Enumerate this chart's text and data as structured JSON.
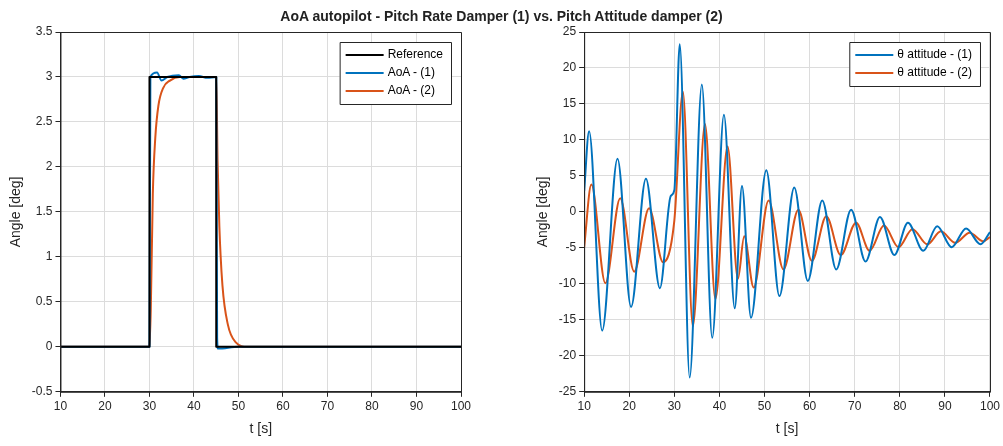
{
  "chart_data": [
    {
      "type": "line",
      "title": "AoA autopilot - Pitch Rate Damper (1) vs. Pitch Attitude damper (2)",
      "xlabel": "t [s]",
      "ylabel": "Angle [deg]",
      "xlim": [
        10,
        100
      ],
      "xticks": [
        10,
        20,
        30,
        40,
        50,
        60,
        70,
        80,
        90,
        100
      ],
      "ylim": [
        -0.5,
        3.5
      ],
      "yticks": [
        -0.5,
        0,
        0.5,
        1,
        1.5,
        2,
        2.5,
        3,
        3.5
      ],
      "grid": true,
      "legend": "top right",
      "series": [
        {
          "name": "Reference",
          "type": "step",
          "color": "#000000",
          "x": [
            10,
            30,
            45,
            100
          ],
          "values": [
            0,
            3,
            0,
            0
          ]
        },
        {
          "name": "AoA - (1)",
          "color": "#0072bd",
          "x": [
            10,
            30,
            30.2,
            31.7,
            32.7,
            34,
            36.6,
            37.6,
            39,
            41.1,
            43,
            45,
            45.2,
            45.4,
            50,
            100
          ],
          "values": [
            0,
            0,
            3,
            3.05,
            2.96,
            3,
            3.02,
            2.98,
            3,
            3.01,
            2.99,
            3,
            0.1,
            -0.02,
            0,
            0
          ]
        },
        {
          "name": "AoA - (2)",
          "color": "#d95319",
          "x": [
            10,
            30,
            30.3,
            30.75,
            31.3,
            32,
            33.1,
            34.6,
            36.8,
            45,
            45.3,
            45.7,
            46.4,
            47.6,
            49.4,
            52,
            100
          ],
          "values": [
            0,
            0,
            0.43,
            1.7,
            2.32,
            2.68,
            2.88,
            2.96,
            3,
            3,
            2.07,
            1.34,
            0.68,
            0.25,
            0.05,
            0,
            0
          ]
        }
      ]
    },
    {
      "type": "line",
      "xlabel": "t [s]",
      "ylabel": "Angle [deg]",
      "xlim": [
        10,
        100
      ],
      "xticks": [
        10,
        20,
        30,
        40,
        50,
        60,
        70,
        80,
        90,
        100
      ],
      "ylim": [
        -25,
        25
      ],
      "yticks": [
        -25,
        -20,
        -15,
        -10,
        -5,
        0,
        5,
        10,
        15,
        20,
        25
      ],
      "grid": true,
      "legend": "top right",
      "series": [
        {
          "name": "θ attitude - (1)",
          "color": "#0072bd",
          "x": [
            10,
            11.1,
            14,
            17.4,
            20.4,
            23.7,
            26.8,
            29.2,
            30,
            31.2,
            33.4,
            36.1,
            38.4,
            41,
            43.4,
            45,
            47,
            50.4,
            53.3,
            56.6,
            59.6,
            62.8,
            65.9,
            69.2,
            72.4,
            75.6,
            78.8,
            81.8,
            85.2,
            88.3,
            91.5,
            94.7,
            97.9,
            100
          ],
          "values": [
            2.9,
            11.2,
            -16.5,
            7.4,
            -13.2,
            4.6,
            -10.6,
            2.2,
            3,
            23.3,
            -23,
            17.7,
            -17.5,
            13.5,
            -13.4,
            3.6,
            -14.7,
            5.8,
            -11.7,
            3.4,
            -9.6,
            1.6,
            -8,
            0.3,
            -6.9,
            -0.7,
            -6,
            -1.5,
            -5.4,
            -2,
            -4.9,
            -2.3,
            -4.5,
            -2.8
          ]
        },
        {
          "name": "θ attitude - (2)",
          "color": "#d95319",
          "x": [
            10,
            11.6,
            14.7,
            18,
            21.1,
            24.4,
            27.5,
            30,
            31.9,
            34.1,
            36.8,
            39.1,
            41.8,
            44.1,
            45.5,
            47.6,
            50.9,
            54.2,
            57.5,
            60.5,
            63.7,
            66.9,
            70.3,
            73.3,
            76.5,
            79.7,
            82.8,
            86.1,
            89.1,
            92.3,
            95.5,
            98.5,
            100
          ],
          "values": [
            -4.9,
            3.8,
            -9.9,
            1.9,
            -8.3,
            0.5,
            -7,
            -1.2,
            16.7,
            -15.9,
            12.2,
            -12.1,
            9.1,
            -9.3,
            -3.4,
            -10.5,
            1.6,
            -8,
            0.3,
            -6.8,
            -0.6,
            -6,
            -1.5,
            -5.4,
            -1.9,
            -4.9,
            -2.4,
            -4.5,
            -2.7,
            -4.3,
            -2.9,
            -4.1,
            -3.5
          ]
        }
      ]
    }
  ]
}
